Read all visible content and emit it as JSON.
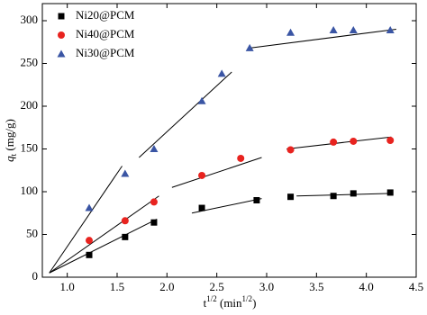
{
  "chart_data": {
    "type": "scatter",
    "xlim": [
      0.75,
      4.5
    ],
    "ylim": [
      0,
      320
    ],
    "xticks": [
      {
        "value": 1,
        "label": "1.0"
      },
      {
        "value": 1.5,
        "label": "1.5"
      },
      {
        "value": 2,
        "label": "2.0"
      },
      {
        "value": 2.5,
        "label": "2.5"
      },
      {
        "value": 3,
        "label": "3.0"
      },
      {
        "value": 3.5,
        "label": "3.5"
      },
      {
        "value": 4,
        "label": "4.0"
      },
      {
        "value": 4.5,
        "label": "4.5"
      }
    ],
    "yticks": [
      0,
      50,
      100,
      150,
      200,
      250,
      300
    ],
    "x_label": [
      "t",
      "1/2",
      " (min",
      "1/2",
      ")"
    ],
    "y_label": [
      "q",
      "t",
      " (mg/g)"
    ],
    "legend": "upper left",
    "series": [
      {
        "name": "Ni20@PCM",
        "color": "#000000",
        "marker": "square",
        "x": [
          1.22,
          1.58,
          1.87,
          2.35,
          2.9,
          3.24,
          3.67,
          3.87,
          4.24
        ],
        "values": [
          26,
          47,
          64,
          81,
          90,
          94,
          95,
          98,
          99
        ],
        "fits": [
          {
            "x": [
              0.82,
              1.9
            ],
            "y": [
              5,
              68
            ]
          },
          {
            "x": [
              2.25,
              2.95
            ],
            "y": [
              75,
              92
            ]
          },
          {
            "x": [
              3.3,
              4.25
            ],
            "y": [
              95,
              98
            ]
          }
        ]
      },
      {
        "name": "Ni40@PCM",
        "color": "#e8231f",
        "marker": "circle",
        "x": [
          1.22,
          1.58,
          1.87,
          2.35,
          2.74,
          3.24,
          3.67,
          3.87,
          4.24
        ],
        "values": [
          43,
          66,
          88,
          119,
          139,
          149,
          158,
          159,
          160
        ],
        "fits": [
          {
            "x": [
              0.82,
              1.92
            ],
            "y": [
              5,
              95
            ]
          },
          {
            "x": [
              2.05,
              2.95
            ],
            "y": [
              105,
              140
            ]
          },
          {
            "x": [
              3.2,
              4.25
            ],
            "y": [
              150,
              164
            ]
          }
        ]
      },
      {
        "name": "Ni30@PCM",
        "color": "#3a55a4",
        "marker": "triangle",
        "x": [
          1.22,
          1.58,
          1.87,
          2.35,
          2.55,
          2.83,
          3.24,
          3.67,
          3.87,
          4.24
        ],
        "values": [
          81,
          121,
          150,
          206,
          238,
          268,
          286,
          289,
          289,
          289
        ],
        "fits": [
          {
            "x": [
              0.82,
              1.55
            ],
            "y": [
              5,
              130
            ]
          },
          {
            "x": [
              1.72,
              2.65
            ],
            "y": [
              140,
              240
            ]
          },
          {
            "x": [
              2.83,
              4.3
            ],
            "y": [
              268,
              290
            ]
          }
        ]
      }
    ]
  }
}
